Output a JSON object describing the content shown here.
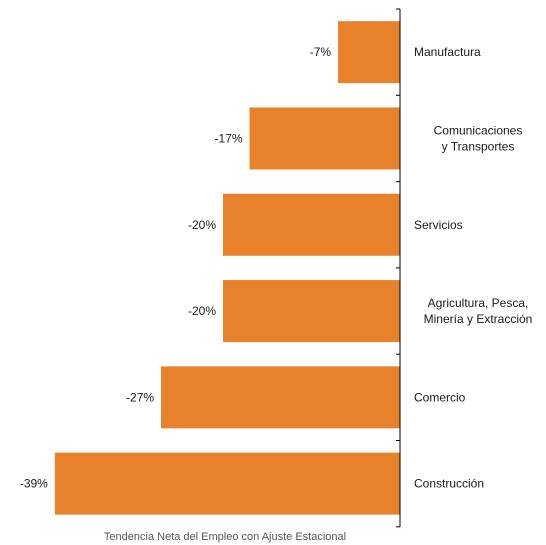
{
  "chart_data": {
    "type": "bar",
    "orientation": "horizontal",
    "categories": [
      [
        "Manufactura"
      ],
      [
        "Comunicaciones",
        "y Transportes"
      ],
      [
        "Servicios"
      ],
      [
        "Agricultura, Pesca,",
        "Minería y Extracción"
      ],
      [
        "Comercio"
      ],
      [
        "Construcción"
      ]
    ],
    "values": [
      -7,
      -17,
      -20,
      -20,
      -27,
      -39
    ],
    "value_labels": [
      "-7%",
      "-17%",
      "-20%",
      "-20%",
      "-27%",
      "-39%"
    ],
    "xlabel": "Tendencia Neta del Empleo con Ajuste Estacional",
    "ylabel": "",
    "xlim": [
      -40,
      0
    ],
    "grid": false,
    "legend": "none",
    "bar_color": "#E8822A",
    "axis_color": "#000000"
  }
}
